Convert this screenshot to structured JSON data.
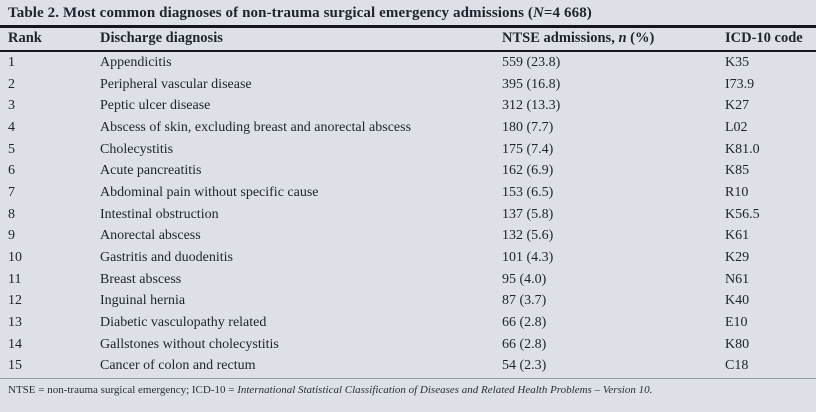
{
  "table": {
    "title": {
      "pre": "Table 2. Most common diagnoses of non-trauma surgical emergency admissions (",
      "n_italic": "N",
      "post": "=4 668)"
    },
    "columns": {
      "rank": "Rank",
      "diagnosis": "Discharge diagnosis",
      "ntse_pre": "NTSE admissions, ",
      "ntse_italic": "n",
      "ntse_post": " (%)",
      "icd": "ICD-10 code"
    },
    "rows": [
      {
        "rank": "1",
        "diagnosis": "Appendicitis",
        "admissions": "559 (23.8)",
        "icd": "K35"
      },
      {
        "rank": "2",
        "diagnosis": "Peripheral vascular disease",
        "admissions": "395 (16.8)",
        "icd": "I73.9"
      },
      {
        "rank": "3",
        "diagnosis": "Peptic ulcer disease",
        "admissions": "312 (13.3)",
        "icd": "K27"
      },
      {
        "rank": "4",
        "diagnosis": "Abscess of skin, excluding breast and anorectal abscess",
        "admissions": "180 (7.7)",
        "icd": "L02"
      },
      {
        "rank": "5",
        "diagnosis": "Cholecystitis",
        "admissions": "175 (7.4)",
        "icd": "K81.0"
      },
      {
        "rank": "6",
        "diagnosis": "Acute pancreatitis",
        "admissions": "162 (6.9)",
        "icd": "K85"
      },
      {
        "rank": "7",
        "diagnosis": "Abdominal pain without specific cause",
        "admissions": "153 (6.5)",
        "icd": "R10"
      },
      {
        "rank": "8",
        "diagnosis": "Intestinal obstruction",
        "admissions": "137 (5.8)",
        "icd": "K56.5"
      },
      {
        "rank": "9",
        "diagnosis": "Anorectal abscess",
        "admissions": "132 (5.6)",
        "icd": "K61"
      },
      {
        "rank": "10",
        "diagnosis": "Gastritis and duodenitis",
        "admissions": "101 (4.3)",
        "icd": "K29"
      },
      {
        "rank": "11",
        "diagnosis": "Breast abscess",
        "admissions": "95 (4.0)",
        "icd": "N61"
      },
      {
        "rank": "12",
        "diagnosis": "Inguinal hernia",
        "admissions": "87 (3.7)",
        "icd": "K40"
      },
      {
        "rank": "13",
        "diagnosis": "Diabetic vasculopathy related",
        "admissions": "66 (2.8)",
        "icd": "E10"
      },
      {
        "rank": "14",
        "diagnosis": "Gallstones without cholecystitis",
        "admissions": "66 (2.8)",
        "icd": "K80"
      },
      {
        "rank": "15",
        "diagnosis": "Cancer of colon and rectum",
        "admissions": "54 (2.3)",
        "icd": "C18"
      }
    ],
    "footnote": {
      "pre": "NTSE = non-trauma surgical emergency; ICD-10 = ",
      "italic": "International Statistical Classification of Diseases and Related Health Problems – Version 10."
    },
    "colors": {
      "background": "#dde1e7",
      "text": "#21242e",
      "rule_dark": "#15171d",
      "rule_light": "#959aa4"
    }
  }
}
